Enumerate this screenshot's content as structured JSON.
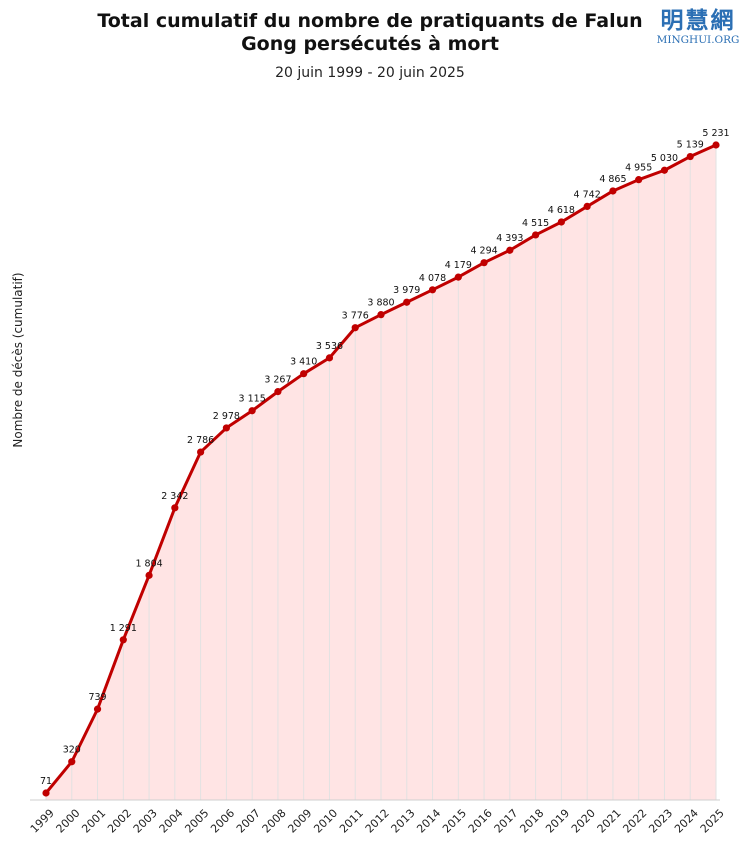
{
  "logo": {
    "cn": "明慧網",
    "en": "MINGHUI.ORG"
  },
  "chart_data": {
    "type": "area",
    "title": "Total cumulatif du nombre de pratiquants de Falun Gong persécutés à mort",
    "subtitle": "20 juin  1999 - 20 juin  2025",
    "xlabel": "",
    "ylabel": "Nombre  de décès (cumulatif)",
    "grid": true,
    "legend": "none",
    "colors": {
      "line": "#c00000",
      "fill": "#ffe4e4",
      "grid": "#e2e2e2"
    },
    "ylim": [
      0,
      5231
    ],
    "series": [
      {
        "x": [
          "1999",
          "2000",
          "2001",
          "2002",
          "2003",
          "2004",
          "2005",
          "2006",
          "2007",
          "2008",
          "2009",
          "2010",
          "2011",
          "2012",
          "2013",
          "2014",
          "2015",
          "2016",
          "2017",
          "2018",
          "2019",
          "2020",
          "2021",
          "2022",
          "2023",
          "2024",
          "2025"
        ],
        "values": [
          71,
          320,
          739,
          1291,
          1804,
          2342,
          2786,
          2978,
          3115,
          3267,
          3410,
          3536,
          3776,
          3880,
          3979,
          4078,
          4179,
          4294,
          4393,
          4515,
          4618,
          4742,
          4865,
          4955,
          5030,
          5139,
          5231
        ],
        "labels": [
          "71",
          "320",
          "739",
          "1 291",
          "1 804",
          "2 342",
          "2 786",
          "2 978",
          "3 115",
          "3 267",
          "3 410",
          "3 536",
          "3 776",
          "3 880",
          "3 979",
          "4 078",
          "4 179",
          "4 294",
          "4 393",
          "4 515",
          "4 618",
          "4 742",
          "4 865",
          "4 955",
          "5 030",
          "5 139",
          "5 231"
        ]
      }
    ]
  }
}
